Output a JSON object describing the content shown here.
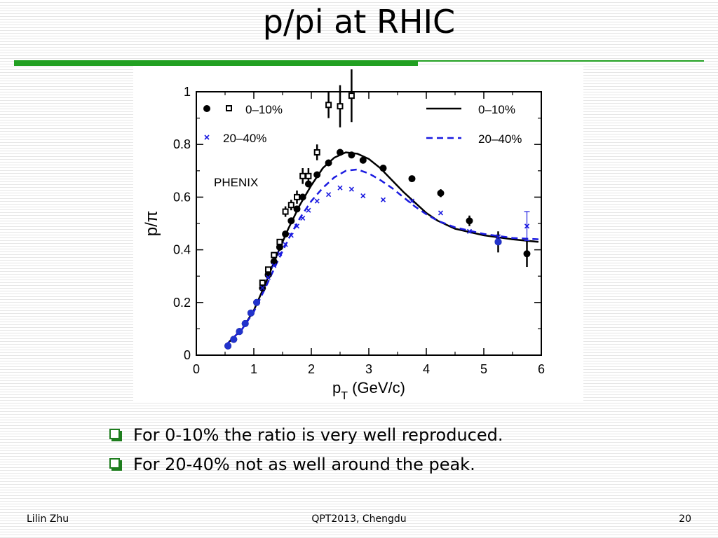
{
  "slide": {
    "title": "p/pi at RHIC",
    "bullets": [
      "For 0-10% the ratio is very well reproduced.",
      "For 20-40% not as well around the peak."
    ],
    "footer": {
      "author": "Lilin Zhu",
      "event": "QPT2013, Chengdu",
      "page": "20"
    }
  },
  "chart_data": {
    "type": "scatter",
    "ylabel": "p/π",
    "xlabel_main": "p",
    "xlabel_sub": "T",
    "xlabel_unit": "(GeV/c)",
    "xlim": [
      0,
      6
    ],
    "ylim": [
      0,
      1
    ],
    "xticks": [
      0,
      1,
      2,
      3,
      4,
      5,
      6
    ],
    "yticks": [
      0,
      0.2,
      0.4,
      0.6,
      0.8,
      1
    ],
    "ytick_labels": [
      "0",
      "0.2",
      "0.4",
      "0.6",
      "0.8",
      "1"
    ],
    "annotation": "PHENIX",
    "legend_left": [
      {
        "label": "0–10%",
        "markers": [
          "filled-circle",
          "open-square"
        ]
      },
      {
        "label": "20–40%",
        "markers": [
          "cross"
        ]
      }
    ],
    "legend_right": [
      {
        "label": "0–10%",
        "style": "solid",
        "color": "#000000"
      },
      {
        "label": "20–40%",
        "style": "dashed",
        "color": "#1a1ae0"
      }
    ],
    "series": [
      {
        "marker": "filled-circle",
        "color": "#000000",
        "points": [
          [
            0.55,
            0.035
          ],
          [
            0.65,
            0.06
          ],
          [
            0.75,
            0.09
          ],
          [
            0.85,
            0.12
          ],
          [
            0.95,
            0.16
          ],
          [
            1.05,
            0.2
          ],
          [
            1.15,
            0.255
          ],
          [
            1.25,
            0.305
          ],
          [
            1.35,
            0.355
          ],
          [
            1.45,
            0.41
          ],
          [
            1.55,
            0.46
          ],
          [
            1.65,
            0.51
          ],
          [
            1.75,
            0.555
          ],
          [
            1.85,
            0.6
          ],
          [
            1.95,
            0.65
          ],
          [
            2.1,
            0.685
          ],
          [
            2.3,
            0.73
          ],
          [
            2.5,
            0.77
          ],
          [
            2.7,
            0.76
          ],
          [
            2.9,
            0.74
          ],
          [
            3.25,
            0.71
          ],
          [
            3.75,
            0.67
          ],
          [
            4.25,
            0.615
          ],
          [
            4.75,
            0.51
          ],
          [
            5.25,
            0.43
          ],
          [
            5.75,
            0.385
          ]
        ],
        "errors": [
          [
            4.25,
            0.015
          ],
          [
            4.75,
            0.02
          ],
          [
            5.25,
            0.04
          ],
          [
            5.75,
            0.05
          ]
        ]
      },
      {
        "marker": "open-square",
        "color": "#000000",
        "points": [
          [
            1.15,
            0.275
          ],
          [
            1.25,
            0.325
          ],
          [
            1.35,
            0.38
          ],
          [
            1.45,
            0.43
          ],
          [
            1.55,
            0.545
          ],
          [
            1.65,
            0.57
          ],
          [
            1.75,
            0.6
          ],
          [
            1.85,
            0.68
          ],
          [
            1.95,
            0.68
          ],
          [
            2.1,
            0.77
          ],
          [
            2.3,
            0.95
          ],
          [
            2.5,
            0.945
          ],
          [
            2.7,
            0.985
          ]
        ],
        "errors": [
          [
            1.55,
            0.02
          ],
          [
            1.65,
            0.02
          ],
          [
            1.75,
            0.025
          ],
          [
            1.85,
            0.03
          ],
          [
            1.95,
            0.03
          ],
          [
            2.1,
            0.03
          ],
          [
            2.3,
            0.05
          ],
          [
            2.5,
            0.08
          ],
          [
            2.7,
            0.1
          ]
        ]
      },
      {
        "marker": "filled-circle",
        "color": "#2233cc",
        "points": [
          [
            0.55,
            0.035
          ],
          [
            0.65,
            0.06
          ],
          [
            0.75,
            0.09
          ],
          [
            0.85,
            0.12
          ],
          [
            0.95,
            0.16
          ],
          [
            1.05,
            0.2
          ],
          [
            5.25,
            0.43
          ]
        ]
      },
      {
        "marker": "cross",
        "color": "#1a1ae0",
        "points": [
          [
            1.15,
            0.255
          ],
          [
            1.25,
            0.295
          ],
          [
            1.35,
            0.34
          ],
          [
            1.45,
            0.385
          ],
          [
            1.55,
            0.42
          ],
          [
            1.65,
            0.455
          ],
          [
            1.75,
            0.49
          ],
          [
            1.85,
            0.52
          ],
          [
            1.95,
            0.55
          ],
          [
            2.1,
            0.585
          ],
          [
            2.3,
            0.61
          ],
          [
            2.5,
            0.635
          ],
          [
            2.7,
            0.63
          ],
          [
            2.9,
            0.605
          ],
          [
            3.25,
            0.59
          ],
          [
            3.75,
            0.585
          ],
          [
            4.25,
            0.54
          ],
          [
            4.75,
            0.47
          ],
          [
            5.25,
            0.45
          ],
          [
            5.75,
            0.49
          ]
        ],
        "errors": [
          [
            5.75,
            0.055
          ]
        ]
      }
    ],
    "curves": [
      {
        "style": "solid",
        "color": "#000000",
        "points": [
          [
            0.5,
            0.035
          ],
          [
            0.8,
            0.1
          ],
          [
            1.0,
            0.17
          ],
          [
            1.2,
            0.27
          ],
          [
            1.4,
            0.38
          ],
          [
            1.6,
            0.48
          ],
          [
            1.8,
            0.57
          ],
          [
            2.0,
            0.645
          ],
          [
            2.2,
            0.71
          ],
          [
            2.4,
            0.75
          ],
          [
            2.6,
            0.77
          ],
          [
            2.8,
            0.765
          ],
          [
            3.0,
            0.745
          ],
          [
            3.2,
            0.71
          ],
          [
            3.4,
            0.665
          ],
          [
            3.6,
            0.62
          ],
          [
            3.8,
            0.58
          ],
          [
            4.0,
            0.54
          ],
          [
            4.2,
            0.51
          ],
          [
            4.5,
            0.48
          ],
          [
            5.0,
            0.455
          ],
          [
            5.5,
            0.44
          ],
          [
            5.95,
            0.43
          ]
        ]
      },
      {
        "style": "dashed",
        "color": "#1a1ae0",
        "points": [
          [
            0.5,
            0.035
          ],
          [
            0.8,
            0.1
          ],
          [
            1.0,
            0.165
          ],
          [
            1.2,
            0.255
          ],
          [
            1.4,
            0.35
          ],
          [
            1.6,
            0.44
          ],
          [
            1.8,
            0.52
          ],
          [
            2.0,
            0.585
          ],
          [
            2.2,
            0.635
          ],
          [
            2.4,
            0.675
          ],
          [
            2.6,
            0.7
          ],
          [
            2.8,
            0.705
          ],
          [
            3.0,
            0.69
          ],
          [
            3.2,
            0.665
          ],
          [
            3.4,
            0.635
          ],
          [
            3.6,
            0.6
          ],
          [
            3.8,
            0.565
          ],
          [
            4.0,
            0.535
          ],
          [
            4.2,
            0.51
          ],
          [
            4.5,
            0.485
          ],
          [
            5.0,
            0.46
          ],
          [
            5.5,
            0.445
          ],
          [
            5.95,
            0.44
          ]
        ]
      }
    ]
  }
}
